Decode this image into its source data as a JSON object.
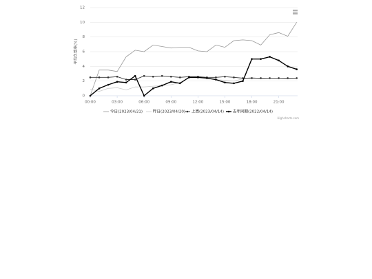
{
  "chart_data": {
    "type": "line",
    "y_axis_label": "平均负载率(%)",
    "credit": "Highcharts.com",
    "x": [
      0,
      1,
      2,
      3,
      4,
      5,
      6,
      7,
      8,
      9,
      10,
      11,
      12,
      13,
      14,
      15,
      16,
      17,
      18,
      19,
      20,
      21,
      22,
      23
    ],
    "xlim": [
      0,
      23.1
    ],
    "xticks": [
      {
        "value": 0,
        "label": "00:00"
      },
      {
        "value": 3,
        "label": "03:00"
      },
      {
        "value": 6,
        "label": "06:00"
      },
      {
        "value": 9,
        "label": "09:00"
      },
      {
        "value": 12,
        "label": "12:00"
      },
      {
        "value": 15,
        "label": "15:00"
      },
      {
        "value": 18,
        "label": "18:00"
      },
      {
        "value": 21,
        "label": "21:00"
      }
    ],
    "ylim": [
      0,
      12
    ],
    "yticks": [
      0,
      2,
      4,
      6,
      8,
      10,
      12
    ],
    "grid": true,
    "series": [
      {
        "name": "今日(2023/04/21)",
        "color": "#999999",
        "width": 0.8,
        "markers": false,
        "values": [
          0,
          3.5,
          3.5,
          3.3,
          5.3,
          6.2,
          6.0,
          6.9,
          6.7,
          6.5,
          6.6,
          6.6,
          6.1,
          6.0,
          6.9,
          6.6,
          7.5,
          7.6,
          7.5,
          6.9,
          8.3,
          8.6,
          8.1,
          10.0
        ]
      },
      {
        "name": "昨日(2023/04/20)",
        "color": "#cccccc",
        "width": 0.8,
        "markers": false,
        "values": [
          0.9,
          0.6,
          1.0,
          1.1,
          0.8,
          1.2,
          1.2,
          1.3,
          1.4,
          1.5,
          1.8,
          2.4,
          2.6,
          2.4,
          2.2,
          2.1,
          2.0,
          2.3,
          2.5,
          2.3,
          2.4,
          2.4,
          2.3,
          2.4
        ]
      },
      {
        "name": "上周(2023/04/14)",
        "color": "#333333",
        "width": 0.9,
        "markers": true,
        "values": [
          2.5,
          2.5,
          2.5,
          2.6,
          2.2,
          2.2,
          2.7,
          2.6,
          2.7,
          2.6,
          2.5,
          2.6,
          2.6,
          2.5,
          2.5,
          2.6,
          2.5,
          2.4,
          2.4,
          2.4,
          2.4,
          2.4,
          2.4,
          2.4
        ]
      },
      {
        "name": "去年同期(2022/04/14)",
        "color": "#000000",
        "width": 1.4,
        "markers": true,
        "values": [
          0,
          1.0,
          1.5,
          1.9,
          1.8,
          2.7,
          0,
          1.0,
          1.4,
          1.9,
          1.7,
          2.5,
          2.5,
          2.4,
          2.2,
          1.8,
          1.7,
          2.0,
          5.0,
          5.0,
          5.3,
          4.8,
          4.0,
          3.6
        ]
      }
    ]
  }
}
